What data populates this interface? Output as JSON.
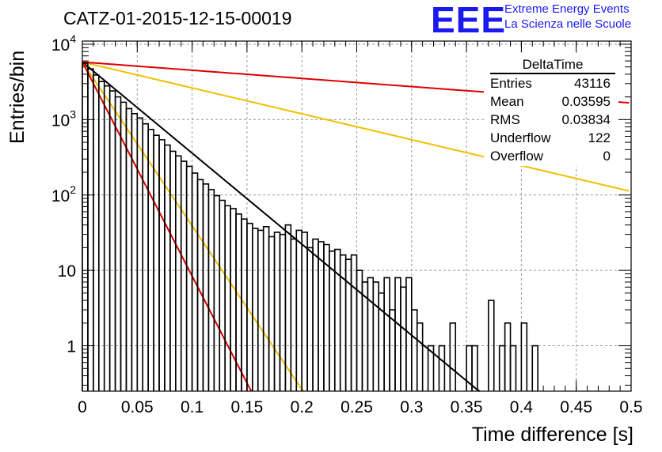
{
  "chart_data": {
    "type": "histogram",
    "title": "CATZ-01-2015-12-15-00019",
    "xlabel": "Time difference [s]",
    "ylabel": "Entries/bin",
    "xlim": [
      0,
      0.5
    ],
    "ylim": [
      0.25,
      11000
    ],
    "yscale": "log",
    "grid": true,
    "x_ticks": [
      "0",
      "0.05",
      "0.1",
      "0.15",
      "0.2",
      "0.25",
      "0.3",
      "0.35",
      "0.4",
      "0.45",
      "0.5"
    ],
    "y_ticks": [
      "1",
      "10",
      "10^2",
      "10^3",
      "10^4"
    ],
    "bin_width": 0.005,
    "histogram_values": [
      5600,
      4700,
      3900,
      3200,
      2800,
      2400,
      2000,
      1700,
      1400,
      1200,
      1050,
      880,
      740,
      620,
      540,
      460,
      380,
      330,
      280,
      240,
      195,
      160,
      140,
      118,
      98,
      85,
      72,
      66,
      56,
      48,
      42,
      36,
      34,
      38,
      28,
      32,
      30,
      40,
      26,
      34,
      32,
      20,
      26,
      24,
      22,
      18,
      19,
      16,
      14,
      16,
      10,
      7,
      8,
      7,
      5,
      8,
      3,
      8,
      6,
      8,
      3,
      2,
      0,
      1,
      0,
      1,
      0,
      2,
      0,
      0,
      1,
      1,
      0,
      0,
      4,
      0,
      1,
      2,
      1,
      0,
      2,
      0,
      1,
      0,
      0,
      0,
      0,
      0,
      0,
      0,
      0,
      0,
      0,
      0,
      0,
      0,
      0,
      0,
      0,
      0
    ],
    "fit_lines": [
      {
        "color": "#000000",
        "y0": 5800,
        "tau": 0.03595
      },
      {
        "color": "#f0c000",
        "y0": 5800,
        "tau": 0.1265
      },
      {
        "color": "#f0c000",
        "y0": 5800,
        "tau": 0.02
      },
      {
        "color": "#dd0000",
        "y0": 5800,
        "tau": 0.4
      },
      {
        "color": "#dd0000",
        "y0": 5800,
        "tau": 0.0153
      }
    ]
  },
  "stats": {
    "title": "DeltaTime",
    "rows": [
      {
        "label": "Entries",
        "value": "43116"
      },
      {
        "label": "Mean",
        "value": "0.03595"
      },
      {
        "label": "RMS",
        "value": "0.03834"
      },
      {
        "label": "Underflow",
        "value": "122"
      },
      {
        "label": "Overflow",
        "value": "0"
      }
    ]
  },
  "logo": {
    "mark": "EEE",
    "line1": "Extreme Energy Events",
    "line2": "La Scienza nelle Scuole",
    "color": "#1a1af0"
  }
}
